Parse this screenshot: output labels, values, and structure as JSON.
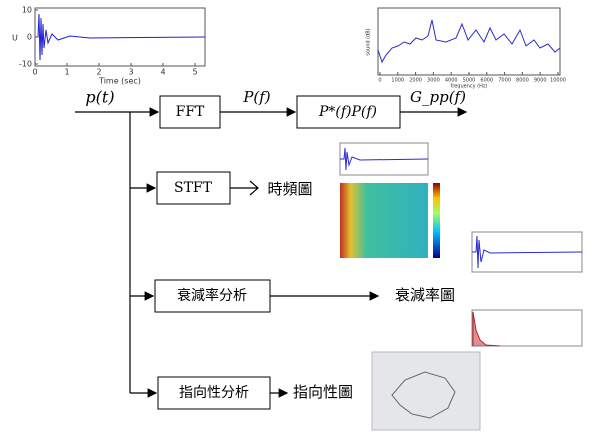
{
  "input": {
    "label": "p(t)"
  },
  "fft": {
    "box": "FFT",
    "output": "P(f)",
    "box2": "P*(f)P(f)",
    "result": "G_pp(f)"
  },
  "stft": {
    "box": "STFT",
    "result": "時頻圖"
  },
  "decay": {
    "box": "衰減率分析",
    "result": "衰減率圖"
  },
  "directivity": {
    "box": "指向性分析",
    "result": "指向性圖"
  },
  "time_plot": {
    "ylabel": "U",
    "xlabel": "Time (sec)",
    "yticks": [
      10,
      0,
      -10
    ],
    "xticks": [
      0,
      1,
      2,
      3,
      4,
      5
    ]
  },
  "spectrum_plot": {
    "ylabel": "sound (dB)",
    "xlabel": "frequency (Hz)",
    "xticks": [
      0,
      1000,
      2000,
      3000,
      4000,
      5000,
      6000,
      7000,
      8000,
      9000,
      10000
    ]
  }
}
